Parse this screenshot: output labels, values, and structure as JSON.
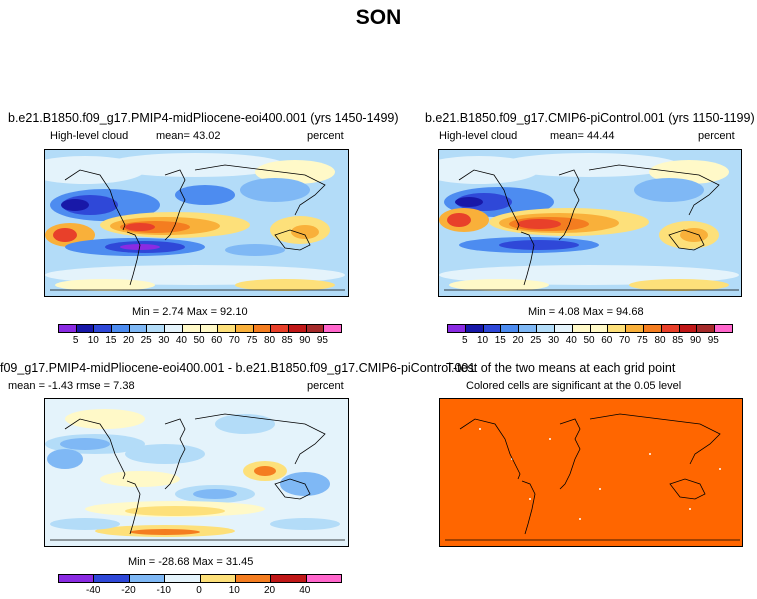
{
  "main_title": "SON",
  "colors": {
    "levels": [
      "#8a2be2",
      "#1818a8",
      "#2f48d8",
      "#4d8cf0",
      "#7fb8f5",
      "#b3dcf8",
      "#e4f3fb",
      "#fff9c8",
      "#fde07a",
      "#f9b03a",
      "#f47d20",
      "#e8402a",
      "#c01818",
      "#a52a2a",
      "#ff66cc"
    ],
    "ttest_fill": "#ff6600"
  },
  "panels": {
    "p1": {
      "title": "b.e21.B1850.f09_g17.PMIP4-midPliocene-eoi400.001 (yrs 1450-1499)",
      "left": "High-level cloud",
      "mean": "mean=   43.02",
      "units": "percent",
      "minmax": "Min =    2.74  Max =   92.10",
      "ticks": [
        "5",
        "10",
        "15",
        "20",
        "25",
        "30",
        "40",
        "50",
        "60",
        "70",
        "75",
        "80",
        "85",
        "90",
        "95"
      ]
    },
    "p2": {
      "title": "b.e21.B1850.f09_g17.CMIP6-piControl.001 (yrs 1150-1199)",
      "left": "High-level cloud",
      "mean": "mean=   44.44",
      "units": "percent",
      "minmax": "Min =    4.08  Max =   94.68",
      "ticks": [
        "5",
        "10",
        "15",
        "20",
        "25",
        "30",
        "40",
        "50",
        "60",
        "70",
        "75",
        "80",
        "85",
        "90",
        "95"
      ]
    },
    "p3": {
      "title": "f09_g17.PMIP4-midPliocene-eoi400.001 - b.e21.B1850.f09_g17.CMIP6-piControl.001",
      "left": "mean =  -1.43     rmse =    7.38",
      "units": "percent",
      "minmax": "Min = -28.68  Max =   31.45",
      "ticks": [
        "-40",
        "-20",
        "-10",
        "0",
        "10",
        "20",
        "40"
      ]
    },
    "p4": {
      "title": "T-test of the two means at each grid point",
      "subtitle": "Colored cells are significant at the 0.05 level"
    }
  },
  "chart_data": [
    {
      "type": "heatmap",
      "title": "b.e21.B1850.f09_g17.PMIP4-midPliocene-eoi400.001 (yrs 1450-1499)",
      "variable": "High-level cloud",
      "units": "percent",
      "mean": 43.02,
      "min": 2.74,
      "max": 92.1,
      "levels": [
        5,
        10,
        15,
        20,
        25,
        30,
        40,
        50,
        60,
        70,
        75,
        80,
        85,
        90,
        95
      ]
    },
    {
      "type": "heatmap",
      "title": "b.e21.B1850.f09_g17.CMIP6-piControl.001 (yrs 1150-1199)",
      "variable": "High-level cloud",
      "units": "percent",
      "mean": 44.44,
      "min": 4.08,
      "max": 94.68,
      "levels": [
        5,
        10,
        15,
        20,
        25,
        30,
        40,
        50,
        60,
        70,
        75,
        80,
        85,
        90,
        95
      ]
    },
    {
      "type": "heatmap",
      "title": "f09_g17.PMIP4-midPliocene-eoi400.001 - b.e21.B1850.f09_g17.CMIP6-piControl.001",
      "units": "percent",
      "mean": -1.43,
      "rmse": 7.38,
      "min": -28.68,
      "max": 31.45,
      "levels": [
        -40,
        -20,
        -10,
        0,
        10,
        20,
        40
      ]
    },
    {
      "type": "heatmap",
      "title": "T-test of the two means at each grid point",
      "subtitle": "Colored cells are significant at the 0.05 level",
      "significance_level": 0.05
    }
  ]
}
